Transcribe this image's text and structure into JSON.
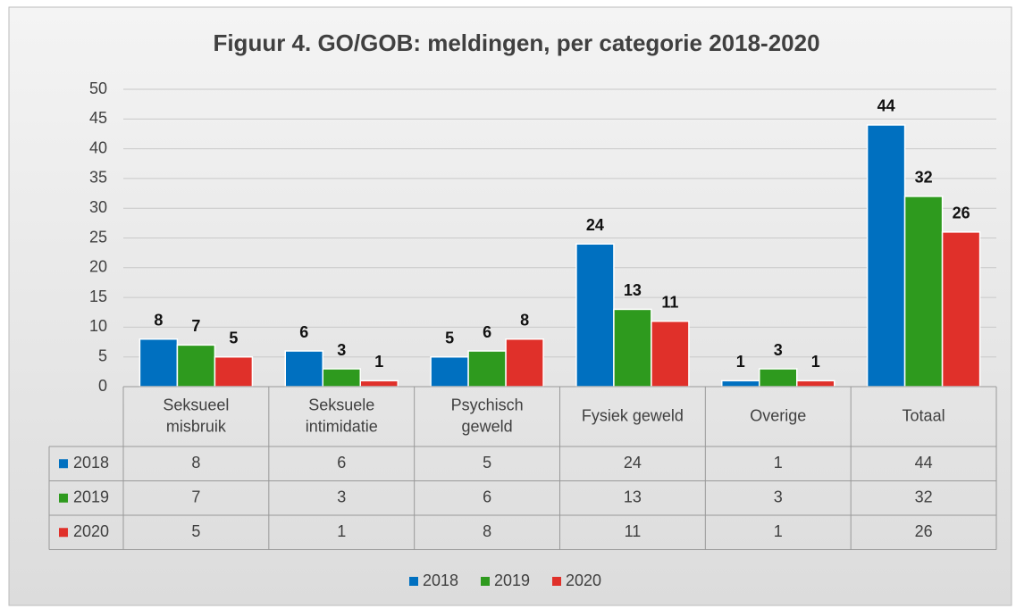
{
  "chart_data": {
    "type": "bar",
    "title": "Figuur 4. GO/GOB: meldingen, per categorie 2018-2020",
    "categories": [
      "Seksueel misbruik",
      "Seksuele intimidatie",
      "Psychisch geweld",
      "Fysiek geweld",
      "Overige",
      "Totaal"
    ],
    "series": [
      {
        "name": "2018",
        "color": "#0070c0",
        "values": [
          8,
          6,
          5,
          24,
          1,
          44
        ]
      },
      {
        "name": "2019",
        "color": "#2e9a1e",
        "values": [
          7,
          3,
          6,
          13,
          3,
          32
        ]
      },
      {
        "name": "2020",
        "color": "#e0302a",
        "values": [
          5,
          1,
          8,
          11,
          1,
          26
        ]
      }
    ],
    "ylim": [
      0,
      50
    ],
    "yticks": [
      0,
      5,
      10,
      15,
      20,
      25,
      30,
      35,
      40,
      45,
      50
    ],
    "grid": true,
    "legend": "bottom",
    "data_table": true
  }
}
